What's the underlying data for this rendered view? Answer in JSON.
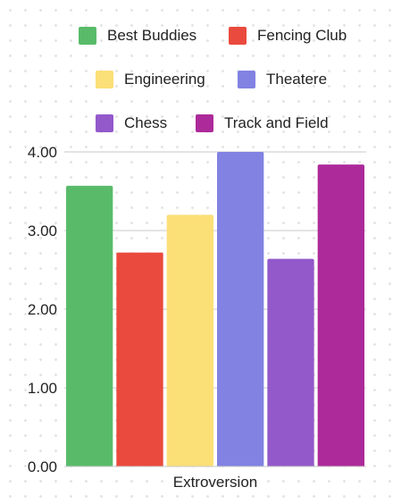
{
  "chart_data": {
    "type": "bar",
    "categories": [
      "Extroversion"
    ],
    "series": [
      {
        "name": "Best Buddies",
        "values": [
          3.57
        ],
        "color": "#59BB6A"
      },
      {
        "name": "Fencing Club",
        "values": [
          2.72
        ],
        "color": "#EA4A3D"
      },
      {
        "name": "Engineering",
        "values": [
          3.2
        ],
        "color": "#FBDF77"
      },
      {
        "name": "Theatere",
        "values": [
          4.0
        ],
        "color": "#8182E2"
      },
      {
        "name": "Chess",
        "values": [
          2.64
        ],
        "color": "#9359CB"
      },
      {
        "name": "Track and Field",
        "values": [
          3.84
        ],
        "color": "#AD2A9A"
      }
    ],
    "ylim": [
      0,
      4
    ],
    "yticks": [
      "0.00",
      "1.00",
      "2.00",
      "3.00",
      "4.00"
    ],
    "grid": true,
    "legend_position": "top",
    "title": "",
    "xlabel": "",
    "ylabel": ""
  }
}
